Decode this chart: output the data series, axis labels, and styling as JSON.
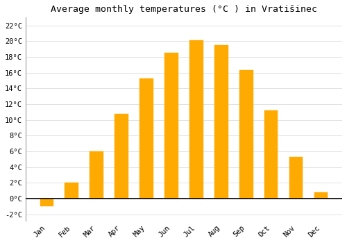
{
  "months": [
    "Jan",
    "Feb",
    "Mar",
    "Apr",
    "May",
    "Jun",
    "Jul",
    "Aug",
    "Sep",
    "Oct",
    "Nov",
    "Dec"
  ],
  "values": [
    -1.0,
    2.0,
    6.0,
    10.8,
    15.3,
    18.5,
    20.1,
    19.5,
    16.3,
    11.2,
    5.3,
    0.8
  ],
  "bar_color": "#FFAA00",
  "title": "Average monthly temperatures (°C ) in Vratišinec",
  "ylim": [
    -2.8,
    23.0
  ],
  "yticks": [
    -2,
    0,
    2,
    4,
    6,
    8,
    10,
    12,
    14,
    16,
    18,
    20,
    22
  ],
  "background_color": "#FFFFFF",
  "grid_color": "#DDDDDD",
  "title_fontsize": 9.5,
  "tick_fontsize": 7.5,
  "bar_width": 0.55
}
